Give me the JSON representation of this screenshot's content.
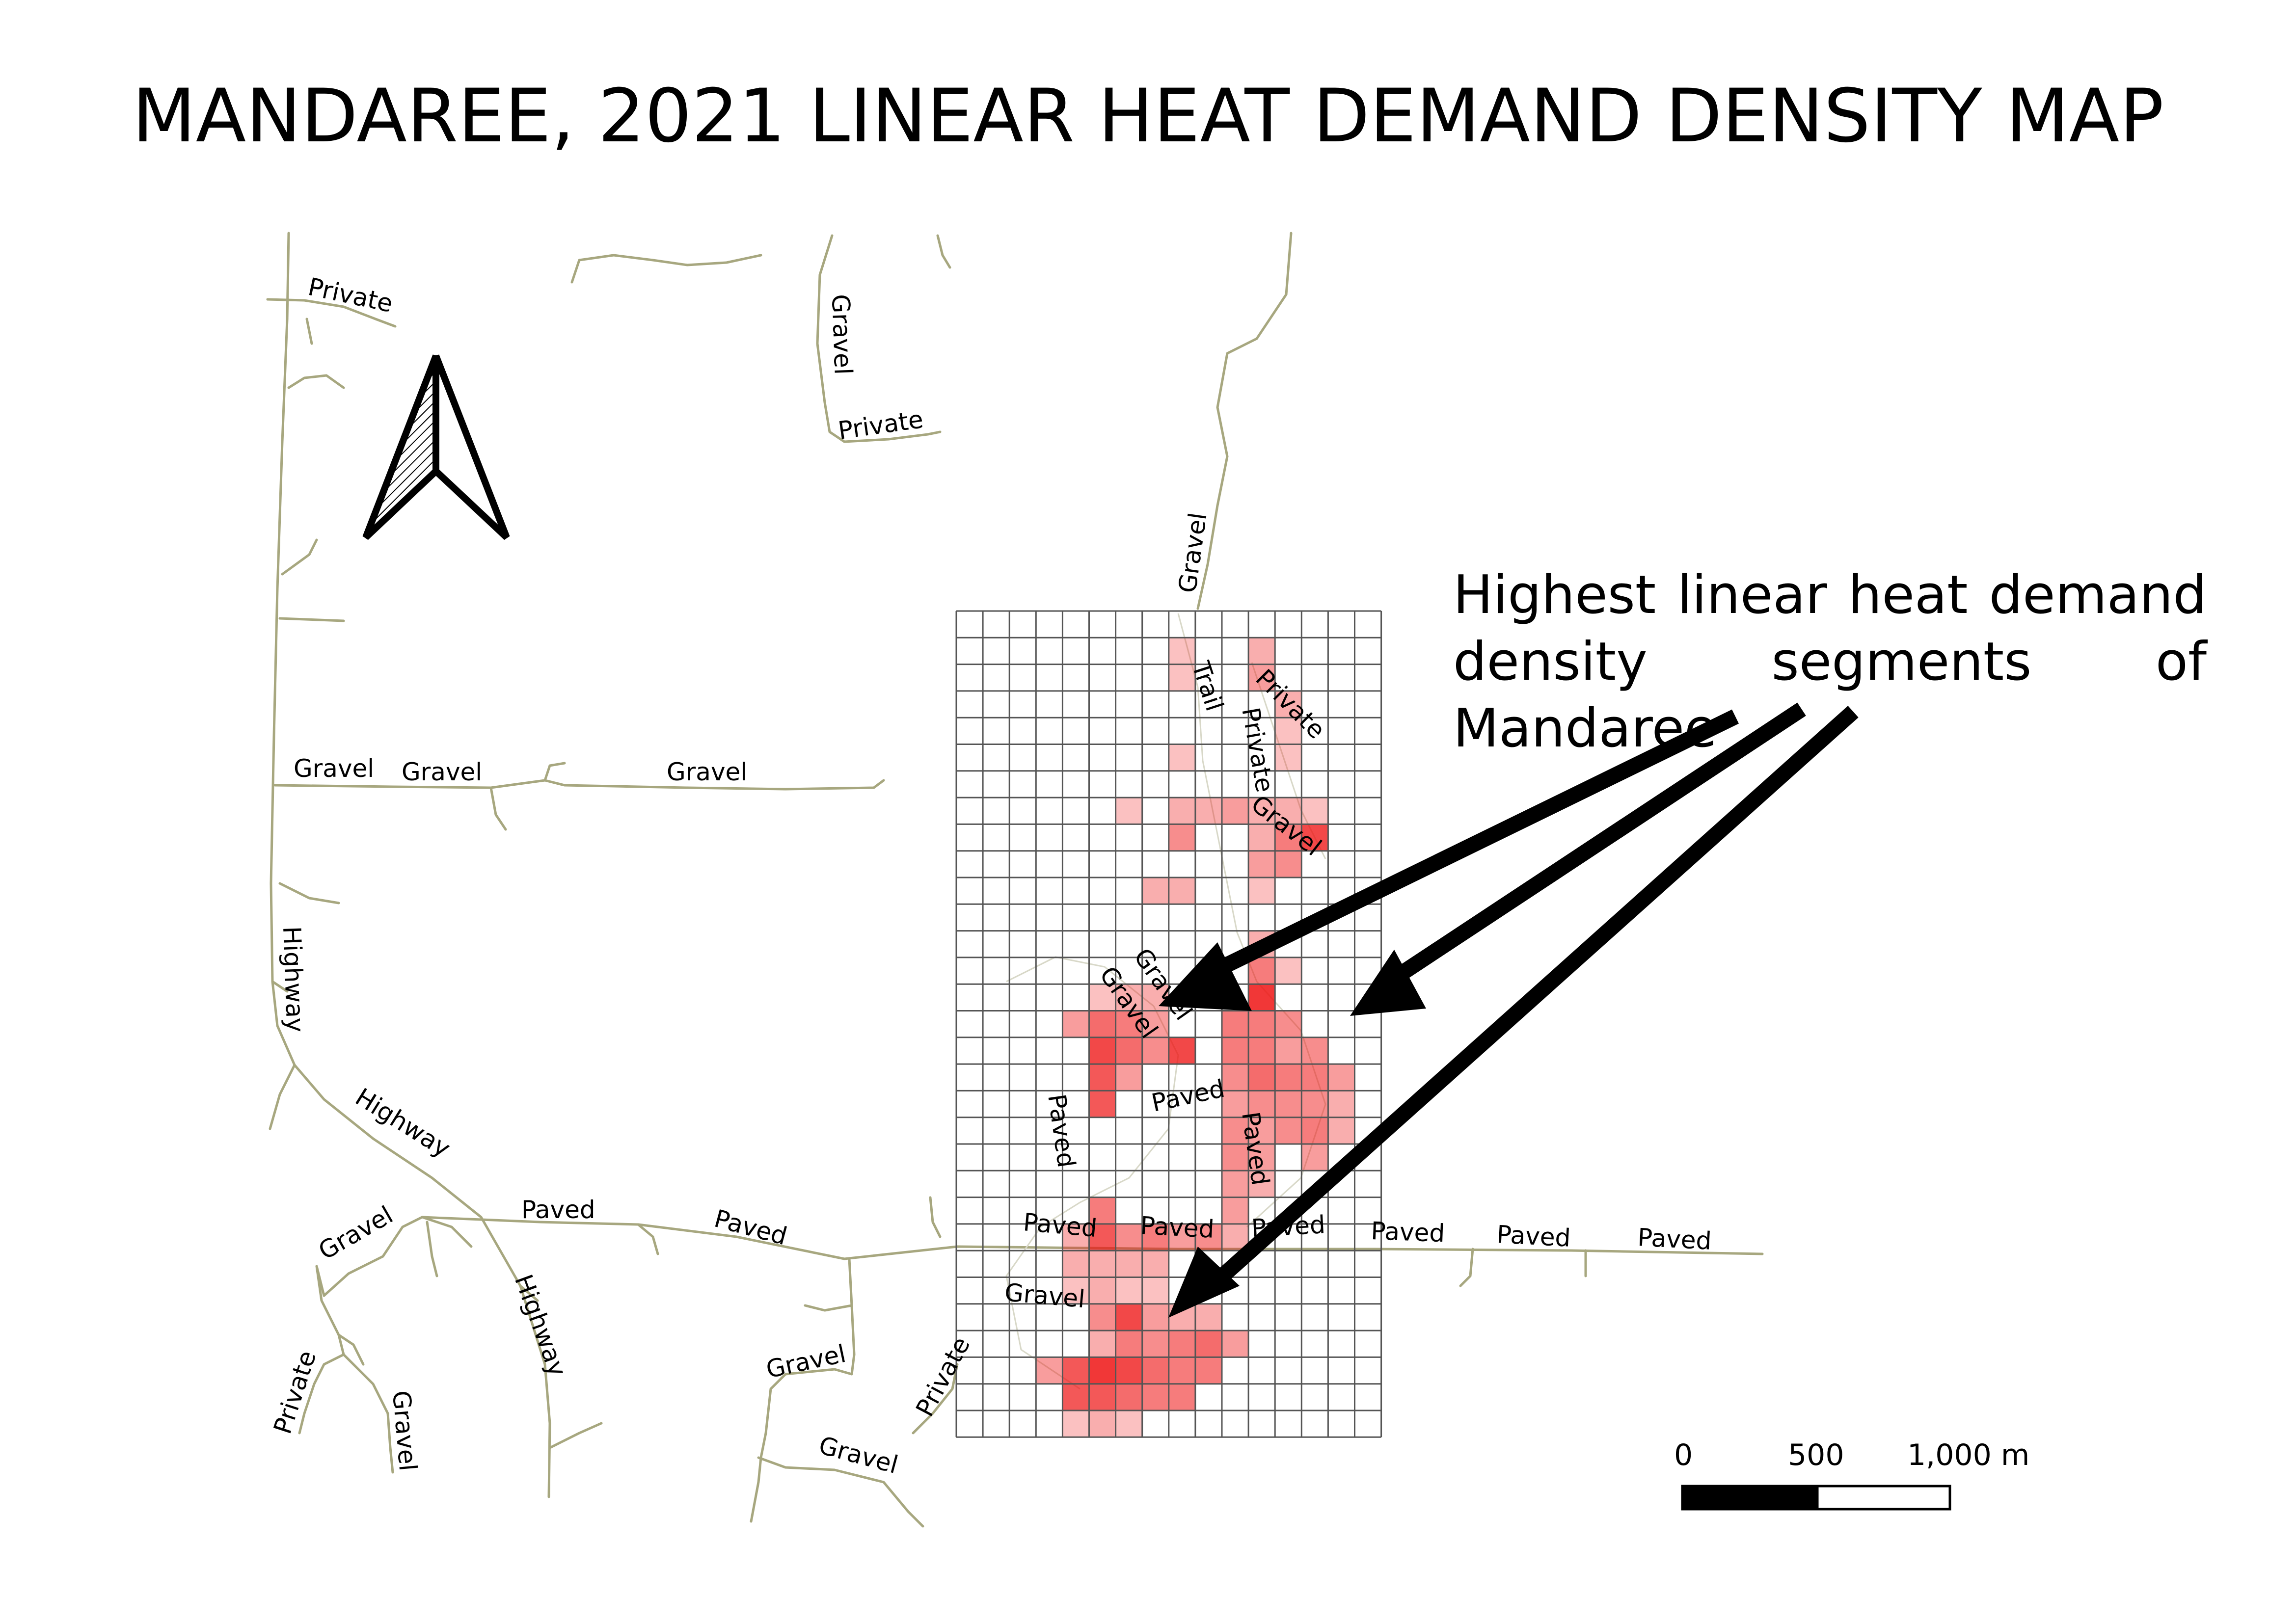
{
  "title": "MANDAREE, 2021 LINEAR HEAT DEMAND DENSITY MAP",
  "annotation": "Highest linear heat demand density segments of Mandaree",
  "road_labels": {
    "private_1": "Private",
    "gravel_1": "Gravel",
    "private_2": "Private",
    "gravel_2": "Gravel",
    "gravel_3": "Gravel",
    "gravel_4": "Gravel",
    "gravel_5": "Gravel",
    "trail": "Trail",
    "private_3": "Private",
    "private_4": "Private",
    "gravel_6": "Gravel",
    "highway_1": "Highway",
    "gravel_7": "Gravel",
    "gravel_8": "Gravel",
    "highway_2": "Highway",
    "paved_1": "Paved",
    "paved_2": "Paved",
    "paved_3": "Paved",
    "paved_4": "Paved",
    "paved_5": "Paved",
    "paved_6": "Paved",
    "paved_7": "Paved",
    "paved_8": "Paved",
    "paved_9": "Paved",
    "paved_10": "Paved",
    "gravel_9": "Gravel",
    "highway_3": "Highway",
    "gravel_10": "Gravel",
    "private_5": "Private",
    "gravel_11": "Gravel",
    "gravel_12": "Gravel",
    "private_6": "Private",
    "gravel_13": "Gravel"
  },
  "scale_bar": {
    "ticks": [
      "0",
      "500",
      "1,000 m"
    ]
  },
  "north_arrow": {
    "icon": "north-arrow-icon"
  },
  "heat_density_cells": [
    [
      8,
      1,
      0.2
    ],
    [
      11,
      1,
      0.3
    ],
    [
      8,
      2,
      0.2
    ],
    [
      11,
      2,
      0.4
    ],
    [
      12,
      3,
      0.3
    ],
    [
      12,
      4,
      0.2
    ],
    [
      8,
      5,
      0.2
    ],
    [
      12,
      5,
      0.2
    ],
    [
      6,
      7,
      0.2
    ],
    [
      8,
      7,
      0.3
    ],
    [
      9,
      7,
      0.3
    ],
    [
      10,
      7,
      0.4
    ],
    [
      11,
      7,
      0.3
    ],
    [
      12,
      7,
      0.3
    ],
    [
      13,
      7,
      0.2
    ],
    [
      8,
      8,
      0.5
    ],
    [
      11,
      8,
      0.3
    ],
    [
      12,
      8,
      0.6
    ],
    [
      13,
      8,
      0.9
    ],
    [
      11,
      9,
      0.4
    ],
    [
      12,
      9,
      0.5
    ],
    [
      7,
      10,
      0.3
    ],
    [
      8,
      10,
      0.3
    ],
    [
      11,
      10,
      0.2
    ],
    [
      11,
      12,
      0.3
    ],
    [
      11,
      13,
      0.6
    ],
    [
      12,
      13,
      0.2
    ],
    [
      5,
      14,
      0.2
    ],
    [
      6,
      14,
      0.3
    ],
    [
      7,
      14,
      0.3
    ],
    [
      11,
      14,
      1.0
    ],
    [
      4,
      15,
      0.4
    ],
    [
      5,
      15,
      0.7
    ],
    [
      6,
      15,
      0.6
    ],
    [
      7,
      15,
      0.4
    ],
    [
      10,
      15,
      0.6
    ],
    [
      11,
      15,
      0.6
    ],
    [
      12,
      15,
      0.5
    ],
    [
      5,
      16,
      0.9
    ],
    [
      6,
      16,
      0.7
    ],
    [
      7,
      16,
      0.5
    ],
    [
      8,
      16,
      0.9
    ],
    [
      10,
      16,
      0.6
    ],
    [
      11,
      16,
      0.6
    ],
    [
      12,
      16,
      0.4
    ],
    [
      13,
      16,
      0.5
    ],
    [
      5,
      17,
      0.8
    ],
    [
      6,
      17,
      0.4
    ],
    [
      10,
      17,
      0.5
    ],
    [
      11,
      17,
      0.7
    ],
    [
      12,
      17,
      0.6
    ],
    [
      13,
      17,
      0.6
    ],
    [
      14,
      17,
      0.4
    ],
    [
      5,
      18,
      0.8
    ],
    [
      10,
      18,
      0.4
    ],
    [
      11,
      18,
      0.5
    ],
    [
      12,
      18,
      0.5
    ],
    [
      13,
      18,
      0.5
    ],
    [
      14,
      18,
      0.3
    ],
    [
      10,
      19,
      0.5
    ],
    [
      11,
      19,
      0.4
    ],
    [
      12,
      19,
      0.5
    ],
    [
      13,
      19,
      0.6
    ],
    [
      14,
      19,
      0.3
    ],
    [
      10,
      20,
      0.5
    ],
    [
      11,
      20,
      0.4
    ],
    [
      13,
      20,
      0.4
    ],
    [
      10,
      21,
      0.4
    ],
    [
      11,
      21,
      0.3
    ],
    [
      5,
      22,
      0.6
    ],
    [
      10,
      22,
      0.4
    ],
    [
      4,
      23,
      0.3
    ],
    [
      5,
      23,
      0.8
    ],
    [
      6,
      23,
      0.5
    ],
    [
      7,
      23,
      0.6
    ],
    [
      8,
      23,
      0.4
    ],
    [
      9,
      23,
      0.5
    ],
    [
      10,
      23,
      0.3
    ],
    [
      4,
      24,
      0.3
    ],
    [
      5,
      24,
      0.3
    ],
    [
      6,
      24,
      0.3
    ],
    [
      7,
      24,
      0.3
    ],
    [
      4,
      25,
      0.2
    ],
    [
      5,
      25,
      0.3
    ],
    [
      6,
      25,
      0.2
    ],
    [
      7,
      25,
      0.2
    ],
    [
      5,
      26,
      0.5
    ],
    [
      6,
      26,
      0.9
    ],
    [
      7,
      26,
      0.4
    ],
    [
      8,
      26,
      0.3
    ],
    [
      9,
      26,
      0.3
    ],
    [
      5,
      27,
      0.3
    ],
    [
      6,
      27,
      0.6
    ],
    [
      7,
      27,
      0.5
    ],
    [
      8,
      27,
      0.6
    ],
    [
      9,
      27,
      0.7
    ],
    [
      10,
      27,
      0.4
    ],
    [
      3,
      28,
      0.4
    ],
    [
      4,
      28,
      0.8
    ],
    [
      5,
      28,
      1.0
    ],
    [
      6,
      28,
      0.9
    ],
    [
      7,
      28,
      0.7
    ],
    [
      8,
      28,
      0.6
    ],
    [
      9,
      28,
      0.6
    ],
    [
      4,
      29,
      0.8
    ],
    [
      5,
      29,
      0.8
    ],
    [
      6,
      29,
      0.7
    ],
    [
      7,
      29,
      0.6
    ],
    [
      8,
      29,
      0.6
    ],
    [
      4,
      30,
      0.2
    ],
    [
      5,
      30,
      0.3
    ],
    [
      6,
      30,
      0.2
    ]
  ]
}
